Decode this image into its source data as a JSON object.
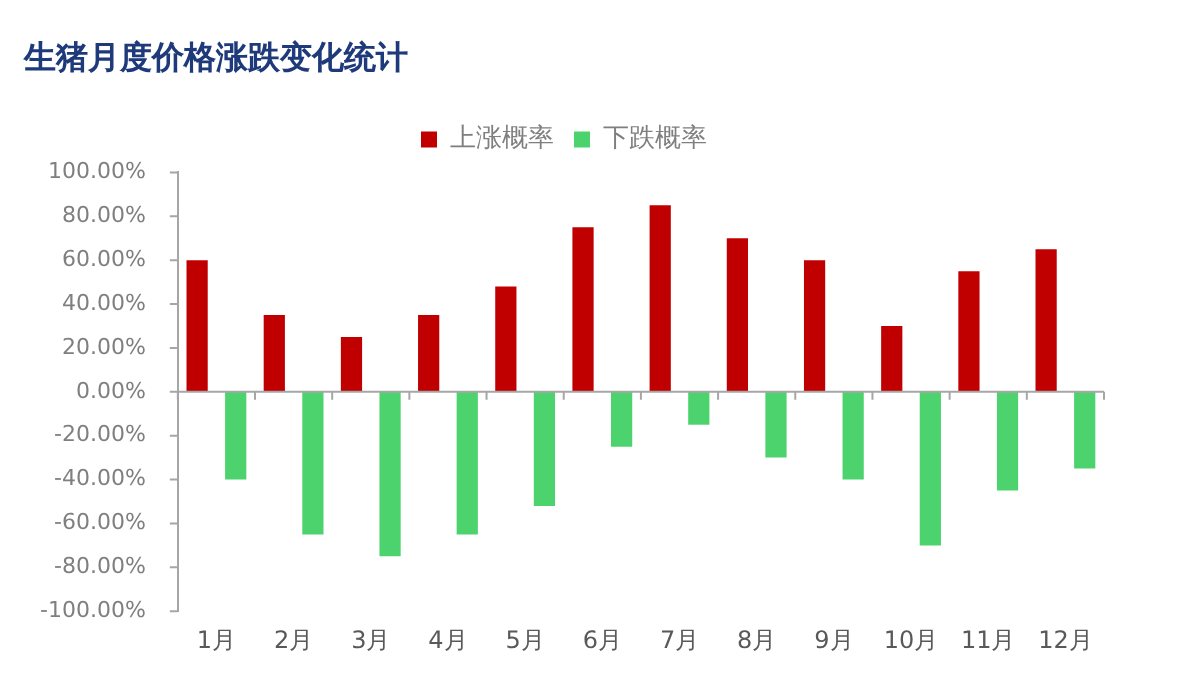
{
  "chart_data": {
    "type": "bar",
    "title": "生猪月度价格涨跌变化统计",
    "categories": [
      "1月",
      "2月",
      "3月",
      "4月",
      "5月",
      "6月",
      "7月",
      "8月",
      "9月",
      "10月",
      "11月",
      "12月"
    ],
    "series": [
      {
        "name": "上涨概率",
        "color": "#c00000",
        "values": [
          60,
          35,
          25,
          35,
          48,
          75,
          85,
          70,
          60,
          30,
          55,
          65
        ]
      },
      {
        "name": "下跌概率",
        "color": "#4cd36e",
        "values": [
          -40,
          -65,
          -75,
          -65,
          -52,
          -25,
          -15,
          -30,
          -40,
          -70,
          -45,
          -35
        ]
      }
    ],
    "ylim": [
      -100,
      100
    ],
    "yticks": [
      {
        "value": -100,
        "label": "-100.00%"
      },
      {
        "value": -80,
        "label": "-80.00%"
      },
      {
        "value": -60,
        "label": "-60.00%"
      },
      {
        "value": -40,
        "label": "-40.00%"
      },
      {
        "value": -20,
        "label": "-20.00%"
      },
      {
        "value": 0,
        "label": "0.00%"
      },
      {
        "value": 20,
        "label": "20.00%"
      },
      {
        "value": 40,
        "label": "40.00%"
      },
      {
        "value": 60,
        "label": "60.00%"
      },
      {
        "value": 80,
        "label": "80.00%"
      },
      {
        "value": 100,
        "label": "100.00%"
      }
    ],
    "legend": "top"
  }
}
